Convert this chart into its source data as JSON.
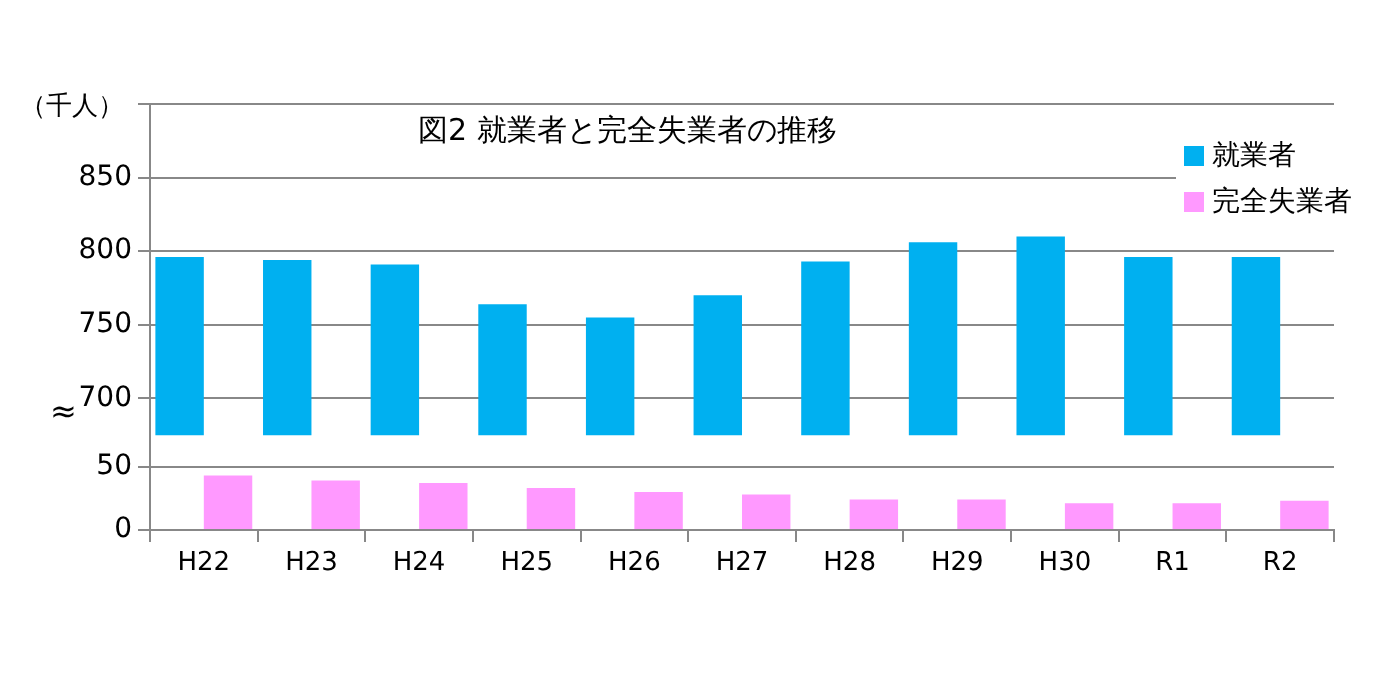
{
  "chart_data": [
    {
      "type": "bar",
      "title": "図2  就業者と完全失業者の推移",
      "annotations": [
        "（千人）"
      ],
      "categories": [
        null,
        null,
        null,
        null,
        null,
        null,
        null,
        null,
        null,
        null,
        null
      ],
      "series": [
        {
          "name": "就業者",
          "color": "#00b0f0",
          "values": [
            796,
            794,
            791,
            764,
            755,
            770,
            793,
            806,
            810,
            796,
            796
          ]
        }
      ],
      "ylim": [
        675,
        900
      ],
      "yticks": [
        700,
        750,
        800,
        850,
        {
          "value": 900,
          "label": null
        }
      ],
      "grid": "y",
      "legend": "top right",
      "tick_labels": "y"
    },
    {
      "type": "bar",
      "annotations": [
        "≈"
      ],
      "categories": [
        "H22",
        "H23",
        "H24",
        "H25",
        "H26",
        "H27",
        "H28",
        "H29",
        "H30",
        "R1",
        "R2"
      ],
      "series": [
        {
          "name": "完全失業者",
          "color": "#ff99ff",
          "values": [
            43,
            39,
            37,
            33,
            30,
            28,
            24,
            24,
            21,
            21,
            23
          ]
        }
      ],
      "ylim": [
        0,
        75
      ],
      "yticks": [
        0,
        50
      ],
      "grid": "y"
    }
  ]
}
